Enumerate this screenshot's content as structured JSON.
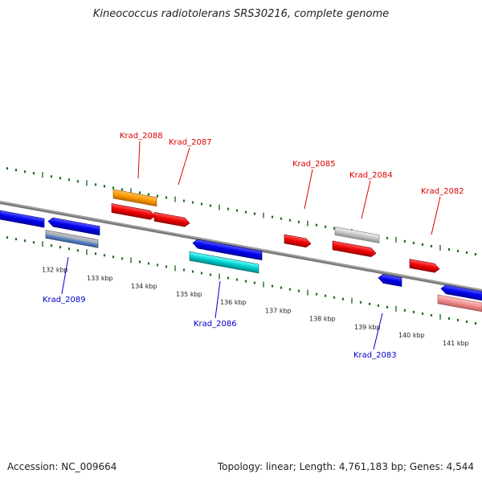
{
  "title": "Kineococcus radiotolerans SRS30216, complete genome",
  "footer": {
    "accession": "Accession: NC_009664",
    "summary": "Topology: linear; Length: 4,761,183 bp; Genes: 4,544"
  },
  "colors": {
    "forward_label": "#dd0000",
    "reverse_label": "#0000cc",
    "axis": "#888888",
    "tick": "#1f6f1f"
  },
  "ticks": [
    {
      "label": "132 kbp"
    },
    {
      "label": "133 kbp"
    },
    {
      "label": "134 kbp"
    },
    {
      "label": "135 kbp"
    },
    {
      "label": "136 kbp"
    },
    {
      "label": "137 kbp"
    },
    {
      "label": "138 kbp"
    },
    {
      "label": "139 kbp"
    },
    {
      "label": "140 kbp"
    },
    {
      "label": "141 kbp"
    }
  ],
  "gene_labels": [
    {
      "id": "krad-2088",
      "text": "Krad_2088",
      "strand": "forward"
    },
    {
      "id": "krad-2087",
      "text": "Krad_2087",
      "strand": "forward"
    },
    {
      "id": "krad-2085",
      "text": "Krad_2085",
      "strand": "forward"
    },
    {
      "id": "krad-2084",
      "text": "Krad_2084",
      "strand": "forward"
    },
    {
      "id": "krad-2082",
      "text": "Krad_2082",
      "strand": "forward"
    },
    {
      "id": "krad-2089",
      "text": "Krad_2089",
      "strand": "reverse"
    },
    {
      "id": "krad-2086",
      "text": "Krad_2086",
      "strand": "reverse"
    },
    {
      "id": "krad-2083",
      "text": "Krad_2083",
      "strand": "reverse"
    }
  ]
}
